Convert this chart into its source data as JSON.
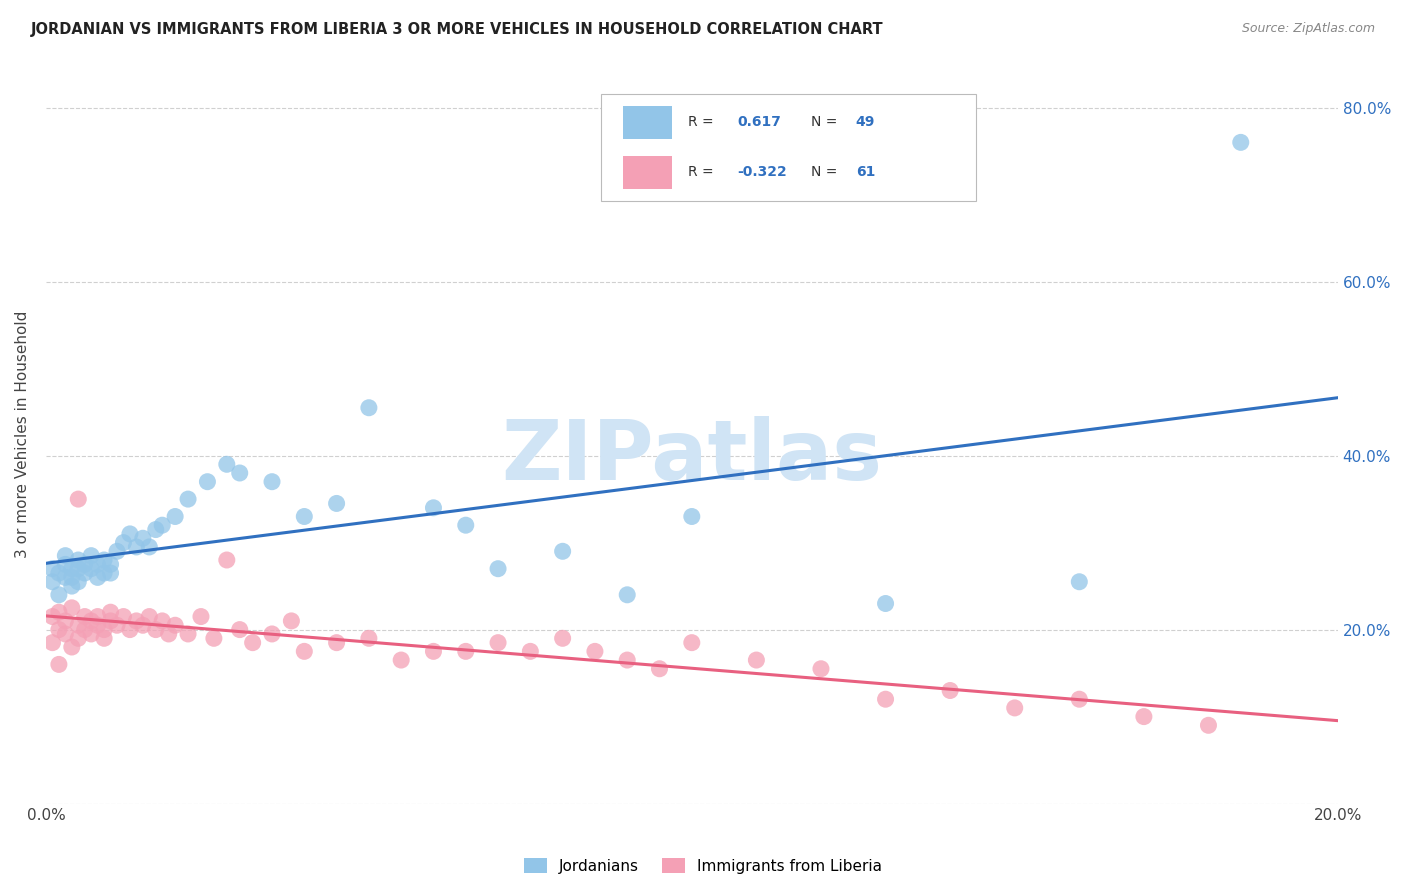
{
  "title": "JORDANIAN VS IMMIGRANTS FROM LIBERIA 3 OR MORE VEHICLES IN HOUSEHOLD CORRELATION CHART",
  "source": "Source: ZipAtlas.com",
  "ylabel": "3 or more Vehicles in Household",
  "ytick_labels": [
    "20.0%",
    "40.0%",
    "60.0%",
    "80.0%"
  ],
  "ytick_positions": [
    0.2,
    0.4,
    0.6,
    0.8
  ],
  "xlim": [
    0.0,
    0.2
  ],
  "ylim": [
    0.0,
    0.85
  ],
  "r_jordanian": 0.617,
  "n_jordanian": 49,
  "r_liberia": -0.322,
  "n_liberia": 61,
  "color_jordanian": "#92C5E8",
  "color_liberia": "#F4A0B5",
  "line_color_jordanian": "#3070C0",
  "line_color_liberia": "#E86080",
  "watermark": "ZIPatlas",
  "watermark_color": "#D0E4F5",
  "background_color": "#FFFFFF",
  "jordanian_x": [
    0.001,
    0.001,
    0.002,
    0.002,
    0.003,
    0.003,
    0.003,
    0.004,
    0.004,
    0.004,
    0.005,
    0.005,
    0.005,
    0.006,
    0.006,
    0.007,
    0.007,
    0.008,
    0.008,
    0.009,
    0.009,
    0.01,
    0.01,
    0.011,
    0.012,
    0.013,
    0.014,
    0.015,
    0.016,
    0.017,
    0.018,
    0.02,
    0.022,
    0.025,
    0.028,
    0.03,
    0.035,
    0.04,
    0.045,
    0.05,
    0.06,
    0.065,
    0.07,
    0.08,
    0.09,
    0.1,
    0.13,
    0.16,
    0.185
  ],
  "jordanian_y": [
    0.255,
    0.27,
    0.24,
    0.265,
    0.26,
    0.275,
    0.285,
    0.25,
    0.27,
    0.26,
    0.255,
    0.27,
    0.28,
    0.265,
    0.275,
    0.27,
    0.285,
    0.26,
    0.275,
    0.265,
    0.28,
    0.275,
    0.265,
    0.29,
    0.3,
    0.31,
    0.295,
    0.305,
    0.295,
    0.315,
    0.32,
    0.33,
    0.35,
    0.37,
    0.39,
    0.38,
    0.37,
    0.33,
    0.345,
    0.455,
    0.34,
    0.32,
    0.27,
    0.29,
    0.24,
    0.33,
    0.23,
    0.255,
    0.76
  ],
  "liberia_x": [
    0.001,
    0.001,
    0.002,
    0.002,
    0.002,
    0.003,
    0.003,
    0.004,
    0.004,
    0.005,
    0.005,
    0.005,
    0.006,
    0.006,
    0.007,
    0.007,
    0.008,
    0.008,
    0.009,
    0.009,
    0.01,
    0.01,
    0.011,
    0.012,
    0.013,
    0.014,
    0.015,
    0.016,
    0.017,
    0.018,
    0.019,
    0.02,
    0.022,
    0.024,
    0.026,
    0.028,
    0.03,
    0.032,
    0.035,
    0.038,
    0.04,
    0.045,
    0.05,
    0.055,
    0.06,
    0.065,
    0.07,
    0.075,
    0.08,
    0.085,
    0.09,
    0.095,
    0.1,
    0.11,
    0.12,
    0.13,
    0.14,
    0.15,
    0.16,
    0.17,
    0.18
  ],
  "liberia_y": [
    0.215,
    0.185,
    0.2,
    0.22,
    0.16,
    0.195,
    0.21,
    0.225,
    0.18,
    0.205,
    0.19,
    0.35,
    0.215,
    0.2,
    0.21,
    0.195,
    0.205,
    0.215,
    0.2,
    0.19,
    0.21,
    0.22,
    0.205,
    0.215,
    0.2,
    0.21,
    0.205,
    0.215,
    0.2,
    0.21,
    0.195,
    0.205,
    0.195,
    0.215,
    0.19,
    0.28,
    0.2,
    0.185,
    0.195,
    0.21,
    0.175,
    0.185,
    0.19,
    0.165,
    0.175,
    0.175,
    0.185,
    0.175,
    0.19,
    0.175,
    0.165,
    0.155,
    0.185,
    0.165,
    0.155,
    0.12,
    0.13,
    0.11,
    0.12,
    0.1,
    0.09
  ]
}
